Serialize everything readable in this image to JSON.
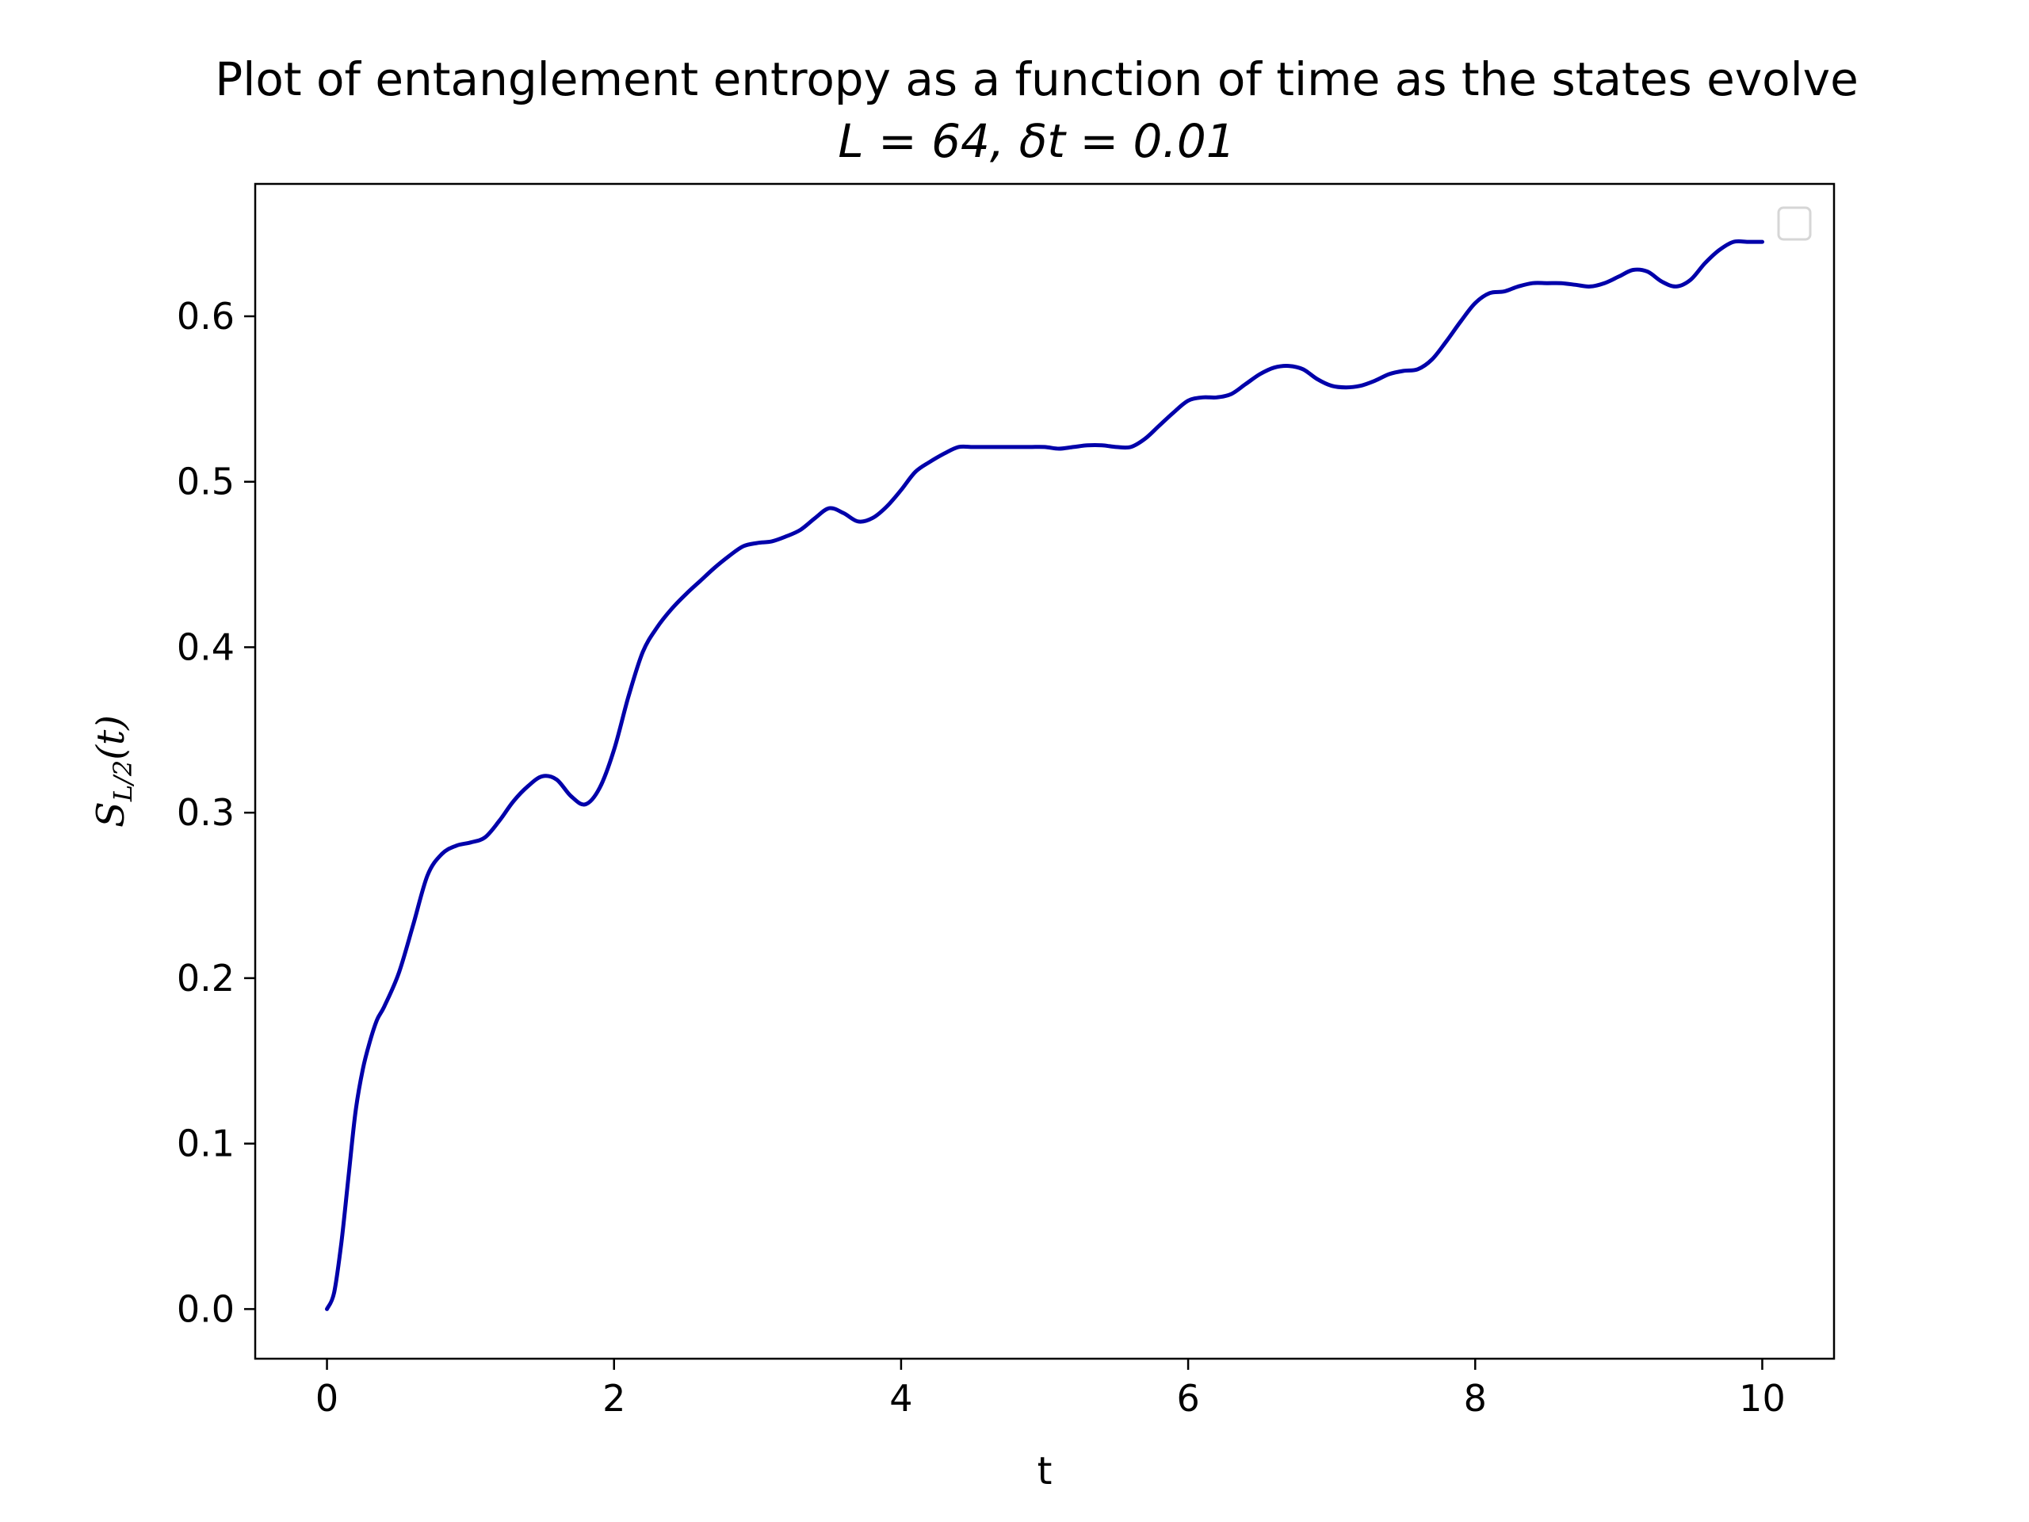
{
  "chart_data": {
    "type": "line",
    "title": "Plot of entanglement entropy as a function of time as the states evolve",
    "subtitle": "L = 64, δt = 0.01",
    "xlabel": "t",
    "ylabel": "S_{L/2}(t)",
    "ylabel_main": "S",
    "ylabel_sub": "L/2",
    "ylabel_tail": "(t)",
    "xlim": [
      -0.5,
      10.5
    ],
    "ylim": [
      -0.03,
      0.68
    ],
    "xticks": [
      0,
      2,
      4,
      6,
      8,
      10
    ],
    "xtick_labels": [
      "0",
      "2",
      "4",
      "6",
      "8",
      "10"
    ],
    "yticks": [
      0.0,
      0.1,
      0.2,
      0.3,
      0.4,
      0.5,
      0.6
    ],
    "ytick_labels": [
      "0.0",
      "0.1",
      "0.2",
      "0.3",
      "0.4",
      "0.5",
      "0.6"
    ],
    "grid": false,
    "legend": "top-right",
    "legend_entries": [],
    "series": [
      {
        "color": "#0000aa",
        "x": [
          0.0,
          0.05,
          0.1,
          0.15,
          0.2,
          0.25,
          0.3,
          0.35,
          0.4,
          0.5,
          0.6,
          0.7,
          0.8,
          0.9,
          1.0,
          1.1,
          1.2,
          1.3,
          1.4,
          1.5,
          1.6,
          1.7,
          1.8,
          1.9,
          2.0,
          2.1,
          2.2,
          2.3,
          2.4,
          2.5,
          2.6,
          2.7,
          2.8,
          2.9,
          3.0,
          3.1,
          3.2,
          3.3,
          3.4,
          3.5,
          3.6,
          3.7,
          3.8,
          3.9,
          4.0,
          4.1,
          4.2,
          4.3,
          4.4,
          4.5,
          4.6,
          4.7,
          4.8,
          4.9,
          5.0,
          5.1,
          5.2,
          5.3,
          5.4,
          5.5,
          5.6,
          5.7,
          5.8,
          5.9,
          6.0,
          6.1,
          6.2,
          6.3,
          6.4,
          6.5,
          6.6,
          6.7,
          6.8,
          6.9,
          7.0,
          7.1,
          7.2,
          7.3,
          7.4,
          7.5,
          7.6,
          7.7,
          7.8,
          7.9,
          8.0,
          8.1,
          8.2,
          8.3,
          8.4,
          8.5,
          8.6,
          8.7,
          8.8,
          8.9,
          9.0,
          9.1,
          9.2,
          9.3,
          9.4,
          9.5,
          9.6,
          9.7,
          9.8,
          9.9,
          10.0
        ],
        "y": [
          0.0,
          0.01,
          0.04,
          0.08,
          0.12,
          0.145,
          0.162,
          0.175,
          0.183,
          0.203,
          0.232,
          0.262,
          0.275,
          0.28,
          0.282,
          0.285,
          0.295,
          0.307,
          0.316,
          0.322,
          0.32,
          0.31,
          0.305,
          0.315,
          0.338,
          0.37,
          0.397,
          0.412,
          0.423,
          0.432,
          0.44,
          0.448,
          0.455,
          0.461,
          0.463,
          0.464,
          0.467,
          0.471,
          0.478,
          0.484,
          0.481,
          0.476,
          0.478,
          0.485,
          0.495,
          0.506,
          0.512,
          0.517,
          0.521,
          0.521,
          0.521,
          0.521,
          0.521,
          0.521,
          0.521,
          0.52,
          0.521,
          0.522,
          0.522,
          0.521,
          0.521,
          0.526,
          0.534,
          0.542,
          0.549,
          0.551,
          0.551,
          0.553,
          0.559,
          0.565,
          0.569,
          0.57,
          0.568,
          0.562,
          0.558,
          0.557,
          0.558,
          0.561,
          0.565,
          0.567,
          0.568,
          0.574,
          0.585,
          0.597,
          0.608,
          0.614,
          0.615,
          0.618,
          0.62,
          0.62,
          0.62,
          0.619,
          0.618,
          0.62,
          0.624,
          0.628,
          0.627,
          0.621,
          0.618,
          0.622,
          0.632,
          0.64,
          0.645,
          0.645,
          0.645
        ]
      }
    ]
  }
}
